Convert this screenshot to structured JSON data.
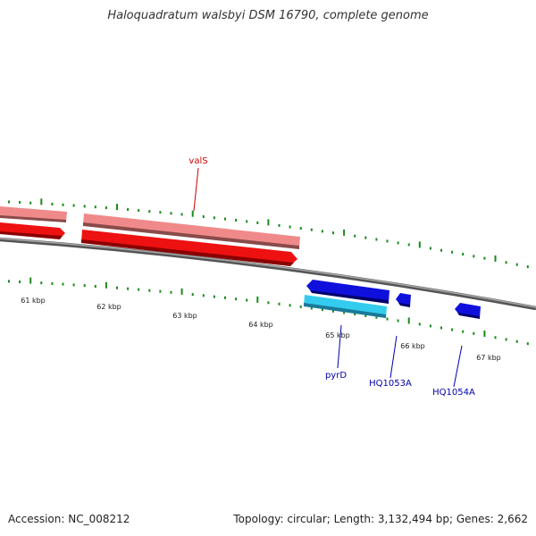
{
  "title": "Haloquadratum walsbyi DSM 16790, complete genome",
  "footer": {
    "accession": "Accession: NC_008212",
    "summary": "Topology: circular; Length: 3,132,494 bp; Genes: 2,662"
  },
  "colors": {
    "background": "#ffffff",
    "backbone": "#888888",
    "tick": "#1a8a1a",
    "forward_cds": "#ee1111",
    "forward_gene": "#f08a8a",
    "reverse_cds": "#1010dd",
    "reverse_gene": "#33ccee",
    "forward_label": "#cc0000",
    "reverse_label": "#0000aa"
  },
  "kbp_labels": [
    "61 kbp",
    "62 kbp",
    "63 kbp",
    "64 kbp",
    "65 kbp",
    "66 kbp",
    "67 kbp"
  ],
  "genes": [
    {
      "name": "valS",
      "strand": "forward"
    },
    {
      "name": "pyrD",
      "strand": "reverse"
    },
    {
      "name": "HQ1053A",
      "strand": "reverse"
    },
    {
      "name": "HQ1054A",
      "strand": "reverse"
    }
  ]
}
